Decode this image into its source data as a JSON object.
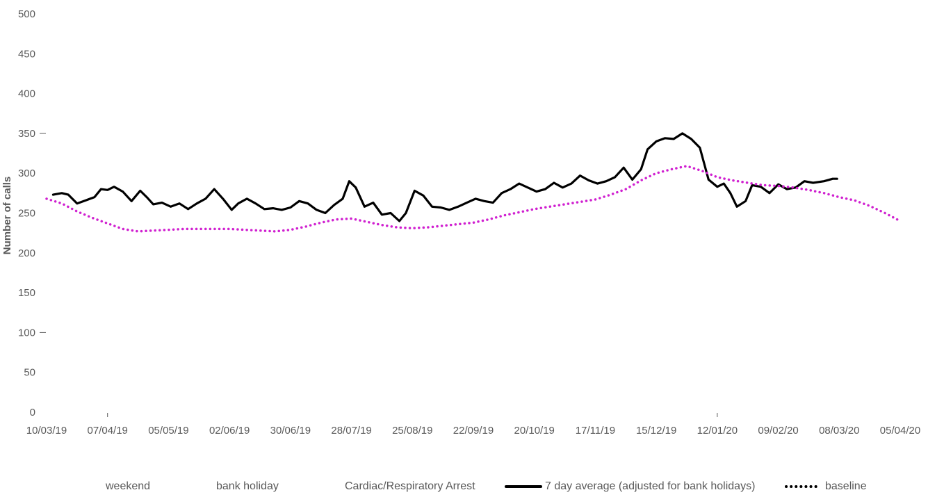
{
  "chart_data": {
    "type": "line",
    "title": "",
    "ylabel": "Number of calls",
    "xlabel": "",
    "ylim": [
      0,
      500
    ],
    "yticks": [
      "0",
      "50",
      "100",
      "150",
      "200",
      "250",
      "300",
      "350",
      "400",
      "450",
      "500"
    ],
    "xlim": [
      "10/03/19",
      "05/04/20"
    ],
    "xticks": [
      "10/03/19",
      "07/04/19",
      "05/05/19",
      "02/06/19",
      "30/06/19",
      "28/07/19",
      "25/08/19",
      "22/09/19",
      "20/10/19",
      "17/11/19",
      "15/12/19",
      "12/01/20",
      "09/02/20",
      "08/03/20",
      "05/04/20"
    ],
    "grid": false,
    "legend_position": "bottom",
    "legend": [
      "weekend",
      "bank holiday",
      "Cardiac/Respiratory Arrest",
      "7 day average (adjusted for bank holidays)",
      "baseline"
    ],
    "series": [
      {
        "name": "7 day average (adjusted for bank holidays)",
        "color": "#000000",
        "style": "solid",
        "points": [
          [
            "13/03/19",
            273
          ],
          [
            "17/03/19",
            275
          ],
          [
            "20/03/19",
            273
          ],
          [
            "24/03/19",
            262
          ],
          [
            "28/03/19",
            266
          ],
          [
            "01/04/19",
            270
          ],
          [
            "04/04/19",
            280
          ],
          [
            "07/04/19",
            279
          ],
          [
            "10/04/19",
            283
          ],
          [
            "14/04/19",
            277
          ],
          [
            "18/04/19",
            265
          ],
          [
            "22/04/19",
            278
          ],
          [
            "25/04/19",
            270
          ],
          [
            "28/04/19",
            261
          ],
          [
            "02/05/19",
            263
          ],
          [
            "06/05/19",
            258
          ],
          [
            "10/05/19",
            262
          ],
          [
            "14/05/19",
            255
          ],
          [
            "18/05/19",
            262
          ],
          [
            "22/05/19",
            268
          ],
          [
            "26/05/19",
            280
          ],
          [
            "30/05/19",
            268
          ],
          [
            "03/06/19",
            254
          ],
          [
            "06/06/19",
            262
          ],
          [
            "10/06/19",
            268
          ],
          [
            "14/06/19",
            262
          ],
          [
            "18/06/19",
            255
          ],
          [
            "22/06/19",
            256
          ],
          [
            "26/06/19",
            254
          ],
          [
            "30/06/19",
            257
          ],
          [
            "04/07/19",
            265
          ],
          [
            "08/07/19",
            262
          ],
          [
            "12/07/19",
            254
          ],
          [
            "16/07/19",
            250
          ],
          [
            "20/07/19",
            260
          ],
          [
            "24/07/19",
            268
          ],
          [
            "27/07/19",
            290
          ],
          [
            "30/07/19",
            282
          ],
          [
            "03/08/19",
            258
          ],
          [
            "07/08/19",
            263
          ],
          [
            "11/08/19",
            248
          ],
          [
            "15/08/19",
            250
          ],
          [
            "19/08/19",
            240
          ],
          [
            "22/08/19",
            250
          ],
          [
            "26/08/19",
            278
          ],
          [
            "30/08/19",
            272
          ],
          [
            "03/09/19",
            258
          ],
          [
            "07/09/19",
            257
          ],
          [
            "11/09/19",
            254
          ],
          [
            "15/09/19",
            258
          ],
          [
            "19/09/19",
            263
          ],
          [
            "23/09/19",
            268
          ],
          [
            "27/09/19",
            265
          ],
          [
            "01/10/19",
            263
          ],
          [
            "05/10/19",
            275
          ],
          [
            "09/10/19",
            280
          ],
          [
            "13/10/19",
            287
          ],
          [
            "17/10/19",
            282
          ],
          [
            "21/10/19",
            277
          ],
          [
            "25/10/19",
            280
          ],
          [
            "29/10/19",
            288
          ],
          [
            "02/11/19",
            282
          ],
          [
            "06/11/19",
            287
          ],
          [
            "10/11/19",
            297
          ],
          [
            "14/11/19",
            291
          ],
          [
            "18/11/19",
            287
          ],
          [
            "22/11/19",
            290
          ],
          [
            "26/11/19",
            295
          ],
          [
            "30/11/19",
            307
          ],
          [
            "04/12/19",
            292
          ],
          [
            "08/12/19",
            305
          ],
          [
            "11/12/19",
            330
          ],
          [
            "15/12/19",
            340
          ],
          [
            "19/12/19",
            344
          ],
          [
            "23/12/19",
            343
          ],
          [
            "27/12/19",
            350
          ],
          [
            "31/12/19",
            343
          ],
          [
            "04/01/20",
            332
          ],
          [
            "08/01/20",
            292
          ],
          [
            "12/01/20",
            283
          ],
          [
            "15/01/20",
            287
          ],
          [
            "18/01/20",
            275
          ],
          [
            "21/01/20",
            258
          ],
          [
            "25/01/20",
            265
          ],
          [
            "28/01/20",
            285
          ],
          [
            "01/02/20",
            283
          ],
          [
            "05/02/20",
            275
          ],
          [
            "09/02/20",
            286
          ],
          [
            "13/02/20",
            280
          ],
          [
            "17/02/20",
            282
          ],
          [
            "21/02/20",
            290
          ],
          [
            "25/02/20",
            288
          ],
          [
            "01/03/20",
            290
          ],
          [
            "05/03/20",
            293
          ],
          [
            "07/03/20",
            293
          ]
        ]
      },
      {
        "name": "baseline",
        "color": "#d020d0",
        "style": "dotted",
        "points": [
          [
            "10/03/19",
            268
          ],
          [
            "17/03/19",
            262
          ],
          [
            "24/03/19",
            252
          ],
          [
            "31/03/19",
            244
          ],
          [
            "07/04/19",
            237
          ],
          [
            "14/04/19",
            230
          ],
          [
            "21/04/19",
            227
          ],
          [
            "28/04/19",
            228
          ],
          [
            "05/05/19",
            229
          ],
          [
            "12/05/19",
            230
          ],
          [
            "19/05/19",
            230
          ],
          [
            "26/05/19",
            230
          ],
          [
            "02/06/19",
            230
          ],
          [
            "09/06/19",
            229
          ],
          [
            "16/06/19",
            228
          ],
          [
            "23/06/19",
            227
          ],
          [
            "30/06/19",
            229
          ],
          [
            "07/07/19",
            233
          ],
          [
            "14/07/19",
            238
          ],
          [
            "21/07/19",
            242
          ],
          [
            "28/07/19",
            243
          ],
          [
            "04/08/19",
            239
          ],
          [
            "11/08/19",
            235
          ],
          [
            "18/08/19",
            232
          ],
          [
            "25/08/19",
            231
          ],
          [
            "01/09/19",
            232
          ],
          [
            "08/09/19",
            234
          ],
          [
            "15/09/19",
            236
          ],
          [
            "22/09/19",
            238
          ],
          [
            "29/09/19",
            242
          ],
          [
            "06/10/19",
            247
          ],
          [
            "13/10/19",
            251
          ],
          [
            "20/10/19",
            255
          ],
          [
            "27/10/19",
            258
          ],
          [
            "03/11/19",
            261
          ],
          [
            "10/11/19",
            264
          ],
          [
            "17/11/19",
            267
          ],
          [
            "24/11/19",
            273
          ],
          [
            "01/12/19",
            280
          ],
          [
            "08/12/19",
            291
          ],
          [
            "15/12/19",
            300
          ],
          [
            "22/12/19",
            305
          ],
          [
            "29/12/19",
            309
          ],
          [
            "05/01/20",
            303
          ],
          [
            "12/01/20",
            295
          ],
          [
            "19/01/20",
            291
          ],
          [
            "26/01/20",
            288
          ],
          [
            "02/02/20",
            285
          ],
          [
            "09/02/20",
            284
          ],
          [
            "16/02/20",
            282
          ],
          [
            "23/02/20",
            279
          ],
          [
            "01/03/20",
            275
          ],
          [
            "08/03/20",
            270
          ],
          [
            "15/03/20",
            266
          ],
          [
            "22/03/20",
            259
          ],
          [
            "29/03/20",
            250
          ],
          [
            "05/04/20",
            240
          ]
        ]
      }
    ]
  }
}
